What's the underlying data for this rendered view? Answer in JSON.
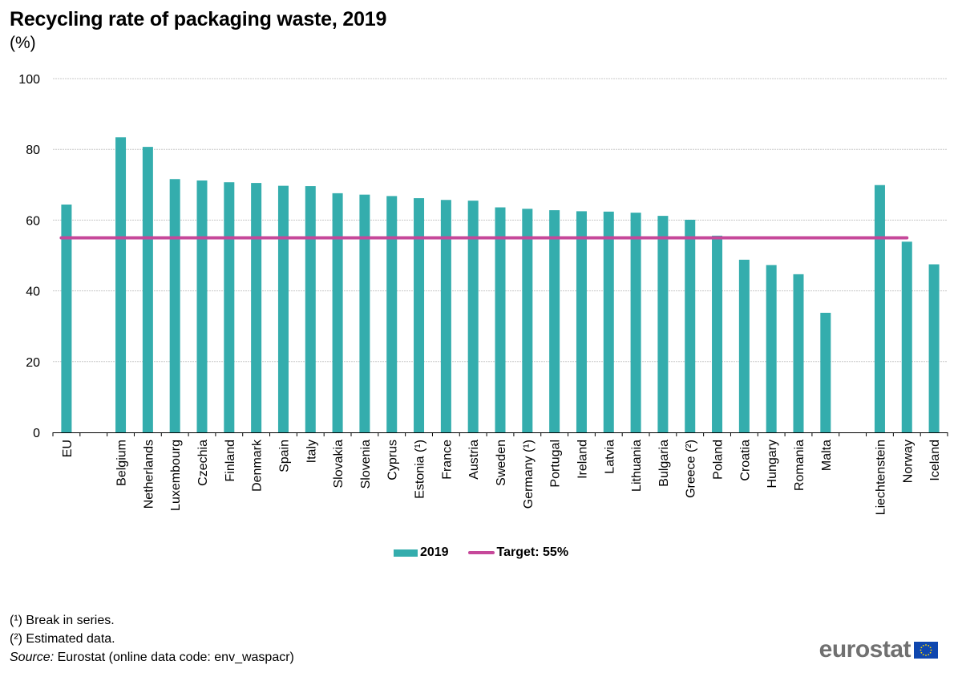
{
  "header": {
    "title": "Recycling rate of packaging waste, 2019",
    "subtitle": "(%)"
  },
  "legend": {
    "series_label": "2019",
    "target_label": "Target: 55%"
  },
  "footnotes": {
    "note1": "(¹) Break in series.",
    "note2": "(²) Estimated data.",
    "source_prefix": "Source:",
    "source_text": " Eurostat (online data code: env_waspacr)"
  },
  "logo": {
    "text": "eurostat"
  },
  "colors": {
    "bar": "#34adad",
    "target": "#c6489a",
    "grid": "#c8c8c8"
  },
  "chart_data": {
    "type": "bar",
    "title": "Recycling rate of packaging waste, 2019",
    "subtitle": "(%)",
    "xlabel": "",
    "ylabel": "%",
    "ylim": [
      0,
      100
    ],
    "yticks": [
      0,
      20,
      40,
      60,
      80,
      100
    ],
    "grid": true,
    "legend_position": "bottom-center",
    "categories": [
      "EU",
      "",
      "Belgium",
      "Netherlands",
      "Luxembourg",
      "Czechia",
      "Finland",
      "Denmark",
      "Spain",
      "Italy",
      "Slovakia",
      "Slovenia",
      "Cyprus",
      "Estonia (¹)",
      "France",
      "Austria",
      "Sweden",
      "Germany (¹)",
      "Portugal",
      "Ireland",
      "Latvia",
      "Lithuania",
      "Bulgaria",
      "Greece (²)",
      "Poland",
      "Croatia",
      "Hungary",
      "Romania",
      "Malta",
      "",
      "Liechtenstein",
      "Norway",
      "Iceland"
    ],
    "series": [
      {
        "name": "2019",
        "values": [
          64.4,
          null,
          83.4,
          80.7,
          71.6,
          71.2,
          70.7,
          70.5,
          69.7,
          69.6,
          67.6,
          67.2,
          66.8,
          66.2,
          65.7,
          65.5,
          63.6,
          63.2,
          62.8,
          62.5,
          62.4,
          62.1,
          61.2,
          60.1,
          55.6,
          48.8,
          47.3,
          44.7,
          33.8,
          null,
          69.9,
          53.9,
          47.5
        ]
      }
    ],
    "reference_lines": [
      {
        "name": "Target: 55%",
        "value": 55
      }
    ]
  }
}
